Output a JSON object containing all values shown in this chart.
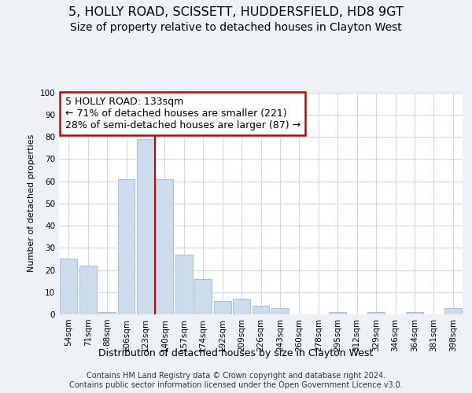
{
  "title": "5, HOLLY ROAD, SCISSETT, HUDDERSFIELD, HD8 9GT",
  "subtitle": "Size of property relative to detached houses in Clayton West",
  "xlabel": "Distribution of detached houses by size in Clayton West",
  "ylabel": "Number of detached properties",
  "categories": [
    "54sqm",
    "71sqm",
    "88sqm",
    "106sqm",
    "123sqm",
    "140sqm",
    "157sqm",
    "174sqm",
    "192sqm",
    "209sqm",
    "226sqm",
    "243sqm",
    "260sqm",
    "278sqm",
    "295sqm",
    "312sqm",
    "329sqm",
    "346sqm",
    "364sqm",
    "381sqm",
    "398sqm"
  ],
  "values": [
    25,
    22,
    1,
    61,
    79,
    61,
    27,
    16,
    6,
    7,
    4,
    3,
    0,
    0,
    1,
    0,
    1,
    0,
    1,
    0,
    3
  ],
  "bar_color": "#cddcec",
  "bar_edge_color": "#a8c0d8",
  "annotation_box_color": "#cc0000",
  "annotation_text_line1": "5 HOLLY ROAD: 133sqm",
  "annotation_text_line2": "← 71% of detached houses are smaller (221)",
  "annotation_text_line3": "28% of semi-detached houses are larger (87) →",
  "property_bin_index": 5,
  "background_color": "#eef2f7",
  "plot_bg_color": "#ffffff",
  "grid_color": "#cdd8e8",
  "ylim": [
    0,
    100
  ],
  "yticks": [
    0,
    10,
    20,
    30,
    40,
    50,
    60,
    70,
    80,
    90,
    100
  ],
  "footer": "Contains HM Land Registry data © Crown copyright and database right 2024.\nContains public sector information licensed under the Open Government Licence v3.0.",
  "title_fontsize": 11.5,
  "subtitle_fontsize": 10,
  "annotation_fontsize": 9,
  "ylabel_fontsize": 8,
  "xlabel_fontsize": 9,
  "tick_fontsize": 7.5,
  "footer_fontsize": 7
}
